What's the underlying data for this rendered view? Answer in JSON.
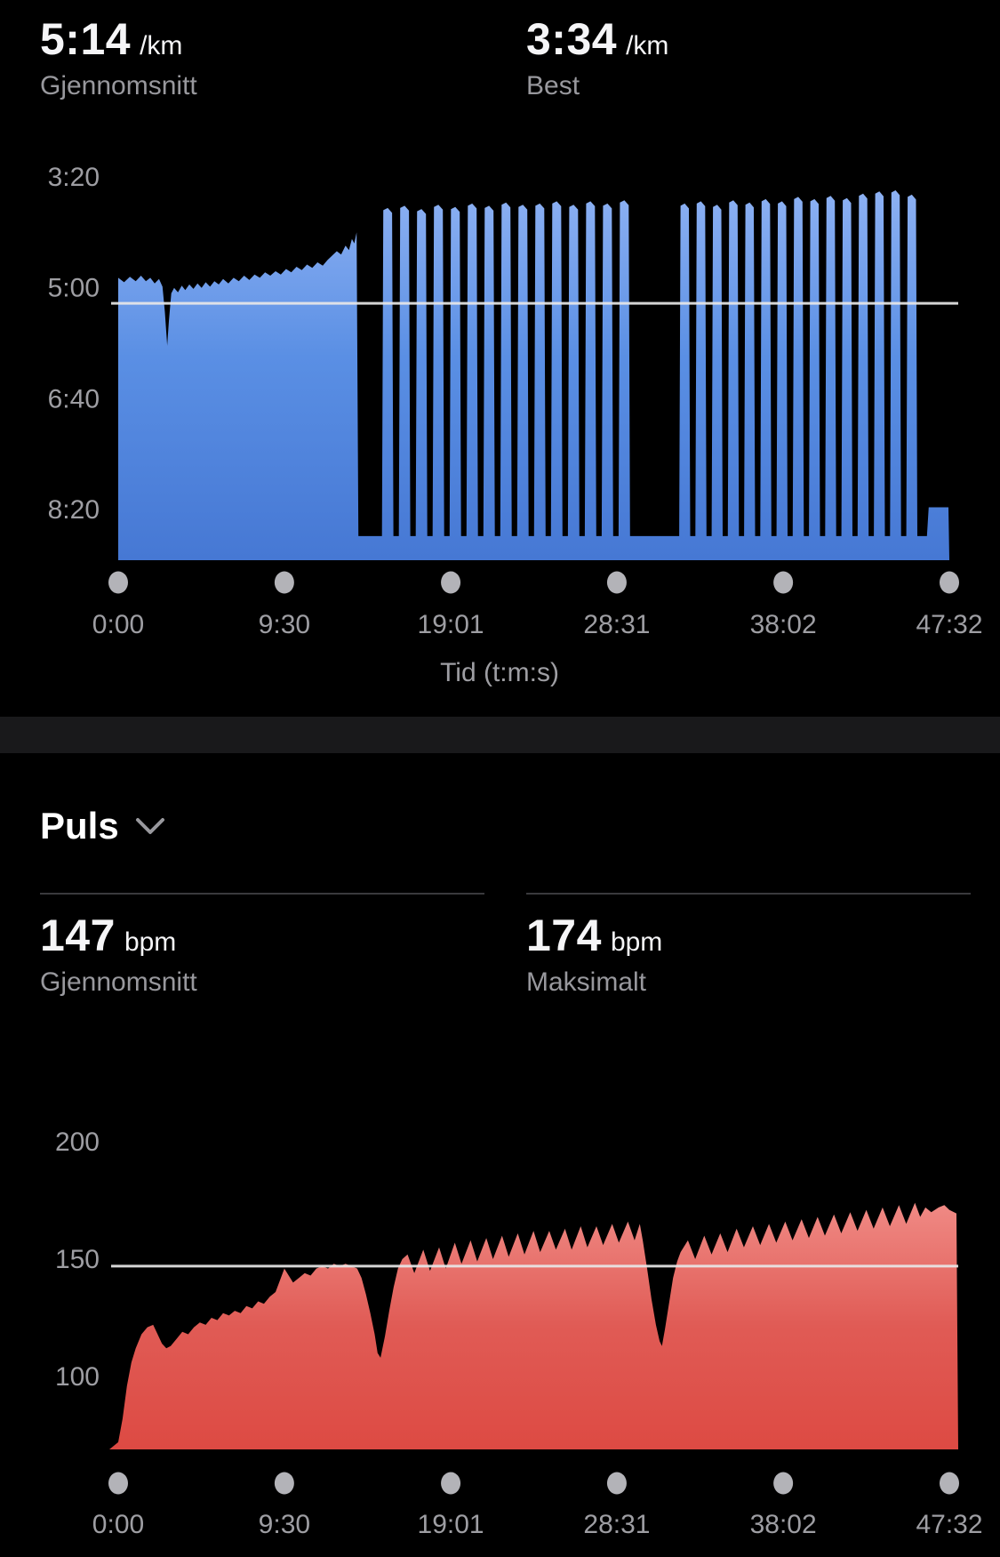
{
  "pace_section": {
    "stats": [
      {
        "value": "5:14",
        "unit": "/km",
        "label": "Gjennomsnitt"
      },
      {
        "value": "3:34",
        "unit": "/km",
        "label": "Best"
      }
    ]
  },
  "pulse_section": {
    "title": "Puls",
    "stats": [
      {
        "value": "147",
        "unit": "bpm",
        "label": "Gjennomsnitt"
      },
      {
        "value": "174",
        "unit": "bpm",
        "label": "Maksimalt"
      }
    ]
  },
  "colors": {
    "pace_fill_top": "#8db1f3",
    "pace_fill_mid": "#5a8fe4",
    "pace_fill_bottom": "#4678d4",
    "hr_fill_top": "#f08a85",
    "hr_fill_mid": "#e05b55",
    "hr_fill_bottom": "#dd4a43",
    "axis_text": "#9e9ea3",
    "dot": "#b3b3b8",
    "average_line": "#e8e8e8"
  },
  "chart_data": [
    {
      "type": "area",
      "metric": "pace",
      "xlabel": "Tid (t:m:s)",
      "y_axis_inverted": true,
      "y_ticks": [
        {
          "label": "3:20",
          "seconds": 200
        },
        {
          "label": "5:00",
          "seconds": 300
        },
        {
          "label": "6:40",
          "seconds": 400
        },
        {
          "label": "8:20",
          "seconds": 500
        }
      ],
      "x_ticks": [
        {
          "label": "0:00",
          "t": 0
        },
        {
          "label": "9:30",
          "t": 570
        },
        {
          "label": "19:01",
          "t": 1141
        },
        {
          "label": "28:31",
          "t": 1711
        },
        {
          "label": "38:02",
          "t": 2282
        },
        {
          "label": "47:32",
          "t": 2852
        }
      ],
      "average_line": {
        "label": "5:14",
        "seconds": 314
      },
      "best_seconds": 214,
      "rest_pace_seconds": 524,
      "baseline_pace_seconds": 546,
      "t_end": 2852,
      "warmup_points": [
        [
          0,
          291
        ],
        [
          20,
          295
        ],
        [
          40,
          290
        ],
        [
          60,
          294
        ],
        [
          78,
          289
        ],
        [
          95,
          294
        ],
        [
          110,
          291
        ],
        [
          125,
          296
        ],
        [
          140,
          292
        ],
        [
          152,
          299
        ],
        [
          160,
          322
        ],
        [
          168,
          352
        ],
        [
          174,
          330
        ],
        [
          182,
          305
        ],
        [
          192,
          300
        ],
        [
          205,
          304
        ],
        [
          218,
          298
        ],
        [
          230,
          302
        ],
        [
          244,
          297
        ],
        [
          258,
          301
        ],
        [
          272,
          296
        ],
        [
          286,
          300
        ],
        [
          300,
          295
        ],
        [
          315,
          299
        ],
        [
          330,
          294
        ],
        [
          345,
          297
        ],
        [
          360,
          292
        ],
        [
          378,
          296
        ],
        [
          396,
          291
        ],
        [
          414,
          294
        ],
        [
          432,
          289
        ],
        [
          450,
          293
        ],
        [
          468,
          288
        ],
        [
          486,
          291
        ],
        [
          504,
          286
        ],
        [
          522,
          289
        ],
        [
          540,
          285
        ],
        [
          558,
          288
        ],
        [
          576,
          283
        ],
        [
          594,
          286
        ],
        [
          612,
          281
        ],
        [
          630,
          284
        ],
        [
          648,
          279
        ],
        [
          666,
          282
        ],
        [
          684,
          277
        ],
        [
          702,
          280
        ],
        [
          718,
          275
        ],
        [
          734,
          271
        ],
        [
          750,
          267
        ],
        [
          765,
          270
        ],
        [
          780,
          262
        ],
        [
          792,
          266
        ],
        [
          802,
          256
        ],
        [
          810,
          260
        ],
        [
          818,
          250
        ]
      ],
      "interval_sets": [
        {
          "t_start": 905,
          "t_end": 1775,
          "run_ratio": 0.68,
          "paces": [
            230,
            228,
            231,
            227,
            229,
            226,
            228,
            225,
            227,
            226,
            224,
            227,
            224,
            226,
            223
          ]
        },
        {
          "t_start": 1925,
          "t_end": 2760,
          "run_ratio": 0.68,
          "paces": [
            226,
            224,
            227,
            223,
            225,
            222,
            224,
            220,
            222,
            219,
            221,
            217,
            215,
            214,
            218
          ]
        }
      ],
      "cooldown": {
        "t_start": 2775,
        "t_end": 2852,
        "pace": 498
      }
    },
    {
      "type": "area",
      "metric": "heart_rate",
      "y_ticks": [
        {
          "label": "200",
          "bpm": 200
        },
        {
          "label": "150",
          "bpm": 150
        },
        {
          "label": "100",
          "bpm": 100
        }
      ],
      "x_ticks": [
        {
          "label": "0:00",
          "t": 0
        },
        {
          "label": "9:30",
          "t": 570
        },
        {
          "label": "19:01",
          "t": 1141
        },
        {
          "label": "28:31",
          "t": 1711
        },
        {
          "label": "38:02",
          "t": 2282
        },
        {
          "label": "47:32",
          "t": 2852
        }
      ],
      "average_line": {
        "label": "147",
        "bpm": 147
      },
      "max_bpm": 174,
      "baseline_bpm": 68,
      "t_end": 2852,
      "points": [
        [
          0,
          72
        ],
        [
          15,
          82
        ],
        [
          30,
          96
        ],
        [
          45,
          106
        ],
        [
          60,
          112
        ],
        [
          80,
          118
        ],
        [
          100,
          121
        ],
        [
          120,
          122
        ],
        [
          135,
          118
        ],
        [
          150,
          114
        ],
        [
          165,
          112
        ],
        [
          180,
          113
        ],
        [
          200,
          116
        ],
        [
          220,
          119
        ],
        [
          240,
          118
        ],
        [
          260,
          121
        ],
        [
          280,
          123
        ],
        [
          300,
          122
        ],
        [
          320,
          125
        ],
        [
          340,
          124
        ],
        [
          360,
          127
        ],
        [
          380,
          126
        ],
        [
          400,
          128
        ],
        [
          420,
          127
        ],
        [
          440,
          130
        ],
        [
          460,
          129
        ],
        [
          480,
          132
        ],
        [
          500,
          131
        ],
        [
          520,
          134
        ],
        [
          540,
          136
        ],
        [
          555,
          141
        ],
        [
          570,
          146
        ],
        [
          585,
          143
        ],
        [
          600,
          140
        ],
        [
          620,
          142
        ],
        [
          640,
          144
        ],
        [
          660,
          143
        ],
        [
          680,
          146
        ],
        [
          700,
          147
        ],
        [
          720,
          146
        ],
        [
          740,
          148
        ],
        [
          760,
          147
        ],
        [
          780,
          148
        ],
        [
          800,
          147
        ],
        [
          820,
          146
        ],
        [
          835,
          142
        ],
        [
          850,
          135
        ],
        [
          865,
          127
        ],
        [
          880,
          118
        ],
        [
          890,
          110
        ],
        [
          900,
          108
        ],
        [
          915,
          117
        ],
        [
          930,
          128
        ],
        [
          945,
          138
        ],
        [
          960,
          146
        ],
        [
          975,
          150
        ],
        [
          993,
          152
        ],
        [
          1016,
          144
        ],
        [
          1047,
          154
        ],
        [
          1070,
          145
        ],
        [
          1101,
          155
        ],
        [
          1124,
          146
        ],
        [
          1155,
          157
        ],
        [
          1178,
          148
        ],
        [
          1209,
          158
        ],
        [
          1232,
          149
        ],
        [
          1263,
          159
        ],
        [
          1286,
          150
        ],
        [
          1317,
          160
        ],
        [
          1340,
          151
        ],
        [
          1371,
          161
        ],
        [
          1394,
          152
        ],
        [
          1425,
          162
        ],
        [
          1448,
          153
        ],
        [
          1479,
          162
        ],
        [
          1502,
          154
        ],
        [
          1533,
          163
        ],
        [
          1556,
          154
        ],
        [
          1587,
          164
        ],
        [
          1610,
          155
        ],
        [
          1641,
          164
        ],
        [
          1664,
          156
        ],
        [
          1695,
          165
        ],
        [
          1718,
          157
        ],
        [
          1749,
          166
        ],
        [
          1772,
          158
        ],
        [
          1790,
          165
        ],
        [
          1800,
          158
        ],
        [
          1815,
          146
        ],
        [
          1830,
          133
        ],
        [
          1845,
          122
        ],
        [
          1858,
          115
        ],
        [
          1866,
          113
        ],
        [
          1876,
          120
        ],
        [
          1890,
          131
        ],
        [
          1904,
          142
        ],
        [
          1918,
          149
        ],
        [
          1930,
          153
        ],
        [
          1955,
          158
        ],
        [
          1980,
          150
        ],
        [
          2011,
          160
        ],
        [
          2036,
          152
        ],
        [
          2066,
          161
        ],
        [
          2091,
          153
        ],
        [
          2122,
          163
        ],
        [
          2147,
          155
        ],
        [
          2178,
          164
        ],
        [
          2203,
          156
        ],
        [
          2233,
          165
        ],
        [
          2258,
          157
        ],
        [
          2289,
          166
        ],
        [
          2314,
          158
        ],
        [
          2345,
          167
        ],
        [
          2370,
          159
        ],
        [
          2400,
          168
        ],
        [
          2425,
          160
        ],
        [
          2456,
          169
        ],
        [
          2481,
          161
        ],
        [
          2512,
          170
        ],
        [
          2537,
          162
        ],
        [
          2567,
          171
        ],
        [
          2592,
          163
        ],
        [
          2623,
          172
        ],
        [
          2648,
          164
        ],
        [
          2679,
          173
        ],
        [
          2704,
          165
        ],
        [
          2734,
          174
        ],
        [
          2752,
          168
        ],
        [
          2770,
          172
        ],
        [
          2790,
          170
        ],
        [
          2815,
          172
        ],
        [
          2835,
          173
        ],
        [
          2852,
          171
        ]
      ]
    }
  ]
}
